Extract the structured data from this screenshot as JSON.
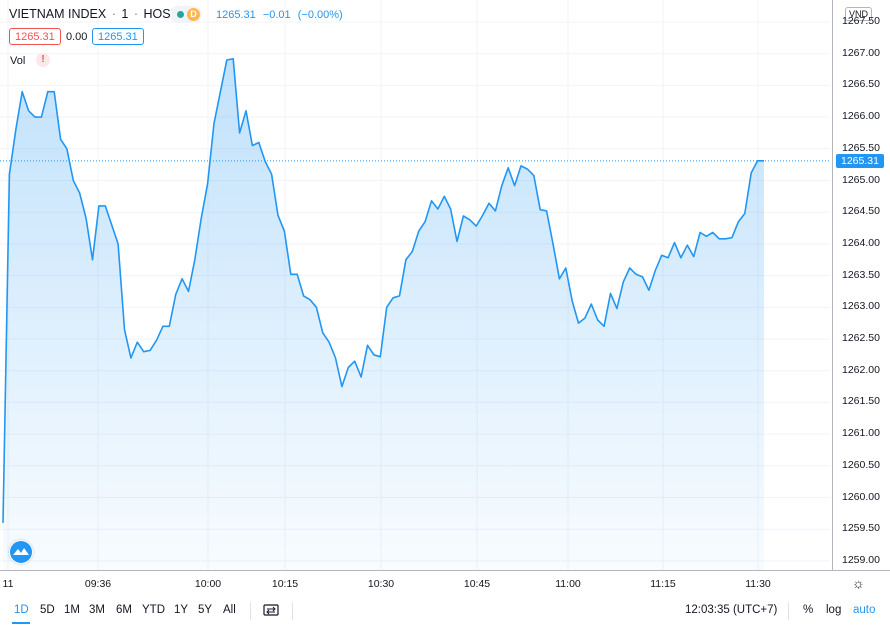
{
  "header": {
    "symbol": "VIETNAM INDEX",
    "sep1": "·",
    "interval": "1",
    "sep2": "·",
    "exchange": "HOSE",
    "status_letter": "D",
    "last": "1265.31",
    "change": "−0.01",
    "change_pct": "(−0.00%)",
    "sell_box": "1265.31",
    "spread": "0.00",
    "buy_box": "1265.31"
  },
  "volume_label": "Vol",
  "volume_warning": "!",
  "currency": "VND",
  "current_price_label": "1265.31",
  "colors": {
    "line": "#2196f3",
    "fill": "#2196f3",
    "sell": "#ef5350",
    "buy": "#2196f3",
    "status_green": "#26a69a",
    "status_orange": "#ffb74d"
  },
  "chart_data": {
    "type": "area",
    "series": [
      {
        "values": [
          1259.6,
          1265.1,
          1265.8,
          1266.4,
          1266.1,
          1266.0,
          1266.0,
          1266.4,
          1266.4,
          1265.65,
          1265.5,
          1265.0,
          1264.8,
          1264.4,
          1263.75,
          1264.6,
          1264.6,
          1264.3,
          1264.0,
          1262.65,
          1262.2,
          1262.45,
          1262.3,
          1262.32,
          1262.48,
          1262.7,
          1262.7,
          1263.2,
          1263.45,
          1263.25,
          1263.75,
          1264.4,
          1264.95,
          1265.9,
          1266.4,
          1266.9,
          1266.92,
          1265.75,
          1266.1,
          1265.55,
          1265.6,
          1265.3,
          1265.1,
          1264.45,
          1264.2,
          1263.52,
          1263.52,
          1263.18,
          1263.12,
          1263.0,
          1262.6,
          1262.45,
          1262.2,
          1261.75,
          1262.05,
          1262.15,
          1261.9,
          1262.4,
          1262.25,
          1262.22,
          1263.0,
          1263.15,
          1263.18,
          1263.75,
          1263.88,
          1264.2,
          1264.35,
          1264.68,
          1264.55,
          1264.75,
          1264.55,
          1264.04,
          1264.44,
          1264.38,
          1264.28,
          1264.45,
          1264.64,
          1264.52,
          1264.92,
          1265.2,
          1264.92,
          1265.23,
          1265.18,
          1265.08,
          1264.54,
          1264.52,
          1264.0,
          1263.45,
          1263.62,
          1263.1,
          1262.75,
          1262.83,
          1263.05,
          1262.8,
          1262.7,
          1263.22,
          1262.98,
          1263.4,
          1263.62,
          1263.52,
          1263.48,
          1263.27,
          1263.58,
          1263.82,
          1263.78,
          1264.02,
          1263.78,
          1263.98,
          1263.8,
          1264.18,
          1264.12,
          1264.18,
          1264.08,
          1264.08,
          1264.1,
          1264.35,
          1264.48,
          1265.12,
          1265.31,
          1265.31
        ]
      }
    ],
    "yticks": [
      "1267.50",
      "1267.00",
      "1266.50",
      "1266.00",
      "1265.50",
      "1265.00",
      "1264.50",
      "1264.00",
      "1263.50",
      "1263.00",
      "1262.50",
      "1262.00",
      "1261.50",
      "1261.00",
      "1260.50",
      "1260.00",
      "1259.50",
      "1259.00"
    ],
    "xticks": [
      "11",
      "09:36",
      "10:00",
      "10:15",
      "10:30",
      "10:45",
      "11:00",
      "11:15",
      "11:30"
    ],
    "ylim": [
      1258.9,
      1267.75
    ]
  },
  "toolbar": {
    "ranges": [
      "1D",
      "5D",
      "1M",
      "3M",
      "6M",
      "YTD",
      "1Y",
      "5Y",
      "All"
    ],
    "active_range": "1D",
    "clock": "12:03:35 (UTC+7)",
    "percent": "%",
    "log": "log",
    "auto": "auto"
  },
  "icons": {
    "settings": "gear-icon",
    "compare": "compare-icon",
    "logo": "tradingview-logo-icon"
  }
}
